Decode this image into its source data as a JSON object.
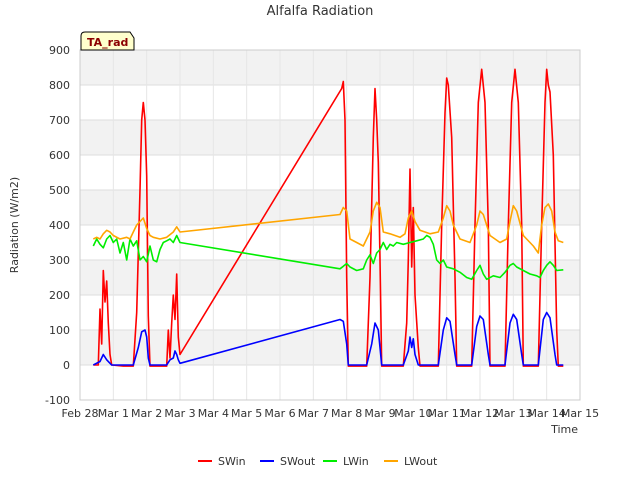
{
  "chart_data": {
    "type": "line",
    "title": "Alfalfa Radiation",
    "xlabel": "Time",
    "ylabel": "Radiation (W/m2)",
    "tag": "TA_rad",
    "ylim": [
      -100,
      900
    ],
    "yticks": [
      -100,
      0,
      100,
      200,
      300,
      400,
      500,
      600,
      700,
      800,
      900
    ],
    "xlim": [
      0,
      15
    ],
    "xticks": [
      0,
      1,
      2,
      3,
      4,
      5,
      6,
      7,
      8,
      9,
      10,
      11,
      12,
      13,
      14,
      15
    ],
    "xtick_labels": [
      "Feb 28",
      "Mar 1",
      "Mar 2",
      "Mar 3",
      "Mar 4",
      "Mar 5",
      "Mar 6",
      "Mar 7",
      "Mar 8",
      "Mar 9",
      "Mar 10",
      "Mar 11",
      "Mar 12",
      "Mar 13",
      "Mar 14",
      "Mar 15"
    ],
    "x_units": "days since Feb 28",
    "grid": true,
    "legend_position": "bottom",
    "series": [
      {
        "name": "SWin",
        "color": "#ff0000",
        "points": [
          [
            0.4,
            0
          ],
          [
            0.55,
            0
          ],
          [
            0.6,
            160
          ],
          [
            0.65,
            60
          ],
          [
            0.7,
            270
          ],
          [
            0.75,
            180
          ],
          [
            0.8,
            240
          ],
          [
            0.85,
            120
          ],
          [
            0.9,
            30
          ],
          [
            0.95,
            0
          ],
          [
            1.3,
            -3
          ],
          [
            1.6,
            -3
          ],
          [
            1.7,
            150
          ],
          [
            1.8,
            500
          ],
          [
            1.85,
            700
          ],
          [
            1.9,
            750
          ],
          [
            1.95,
            700
          ],
          [
            2.0,
            540
          ],
          [
            2.05,
            140
          ],
          [
            2.1,
            -3
          ],
          [
            2.6,
            -3
          ],
          [
            2.65,
            100
          ],
          [
            2.7,
            20
          ],
          [
            2.75,
            120
          ],
          [
            2.8,
            200
          ],
          [
            2.85,
            130
          ],
          [
            2.9,
            260
          ],
          [
            2.95,
            80
          ],
          [
            3.0,
            30
          ],
          [
            7.85,
            790
          ],
          [
            7.9,
            810
          ],
          [
            7.95,
            700
          ],
          [
            8.0,
            250
          ],
          [
            8.05,
            -3
          ],
          [
            8.6,
            -3
          ],
          [
            8.7,
            250
          ],
          [
            8.8,
            650
          ],
          [
            8.85,
            790
          ],
          [
            8.9,
            700
          ],
          [
            8.95,
            580
          ],
          [
            9.0,
            300
          ],
          [
            9.05,
            -3
          ],
          [
            9.7,
            -3
          ],
          [
            9.8,
            120
          ],
          [
            9.85,
            300
          ],
          [
            9.9,
            560
          ],
          [
            9.95,
            280
          ],
          [
            10.0,
            450
          ],
          [
            10.05,
            200
          ],
          [
            10.15,
            50
          ],
          [
            10.2,
            -3
          ],
          [
            10.75,
            -3
          ],
          [
            10.85,
            400
          ],
          [
            10.95,
            720
          ],
          [
            11.0,
            820
          ],
          [
            11.05,
            800
          ],
          [
            11.15,
            650
          ],
          [
            11.25,
            250
          ],
          [
            11.3,
            -3
          ],
          [
            11.75,
            -3
          ],
          [
            11.85,
            400
          ],
          [
            11.95,
            750
          ],
          [
            12.05,
            845
          ],
          [
            12.15,
            750
          ],
          [
            12.25,
            400
          ],
          [
            12.3,
            -3
          ],
          [
            12.75,
            -3
          ],
          [
            12.85,
            400
          ],
          [
            12.95,
            750
          ],
          [
            13.05,
            845
          ],
          [
            13.15,
            750
          ],
          [
            13.25,
            400
          ],
          [
            13.3,
            -3
          ],
          [
            13.75,
            -3
          ],
          [
            13.85,
            400
          ],
          [
            13.95,
            750
          ],
          [
            14.0,
            845
          ],
          [
            14.05,
            800
          ],
          [
            14.1,
            780
          ],
          [
            14.2,
            600
          ],
          [
            14.3,
            100
          ],
          [
            14.35,
            -3
          ],
          [
            14.5,
            -3
          ]
        ]
      },
      {
        "name": "SWout",
        "color": "#0000ff",
        "points": [
          [
            0.4,
            0
          ],
          [
            0.6,
            10
          ],
          [
            0.7,
            30
          ],
          [
            0.8,
            15
          ],
          [
            0.9,
            5
          ],
          [
            0.95,
            0
          ],
          [
            1.6,
            0
          ],
          [
            1.75,
            50
          ],
          [
            1.85,
            95
          ],
          [
            1.95,
            100
          ],
          [
            2.0,
            80
          ],
          [
            2.05,
            20
          ],
          [
            2.1,
            0
          ],
          [
            2.6,
            0
          ],
          [
            2.7,
            15
          ],
          [
            2.8,
            20
          ],
          [
            2.85,
            40
          ],
          [
            2.9,
            30
          ],
          [
            2.95,
            15
          ],
          [
            3.0,
            5
          ],
          [
            7.8,
            130
          ],
          [
            7.9,
            125
          ],
          [
            8.0,
            60
          ],
          [
            8.05,
            0
          ],
          [
            8.6,
            0
          ],
          [
            8.75,
            60
          ],
          [
            8.85,
            120
          ],
          [
            8.95,
            100
          ],
          [
            9.05,
            0
          ],
          [
            9.7,
            0
          ],
          [
            9.85,
            40
          ],
          [
            9.9,
            80
          ],
          [
            9.95,
            50
          ],
          [
            10.0,
            75
          ],
          [
            10.05,
            30
          ],
          [
            10.15,
            0
          ],
          [
            10.75,
            0
          ],
          [
            10.9,
            100
          ],
          [
            11.0,
            135
          ],
          [
            11.1,
            125
          ],
          [
            11.25,
            30
          ],
          [
            11.3,
            0
          ],
          [
            11.75,
            0
          ],
          [
            11.9,
            110
          ],
          [
            12.0,
            140
          ],
          [
            12.1,
            130
          ],
          [
            12.25,
            30
          ],
          [
            12.3,
            0
          ],
          [
            12.75,
            0
          ],
          [
            12.9,
            120
          ],
          [
            13.0,
            145
          ],
          [
            13.1,
            130
          ],
          [
            13.25,
            30
          ],
          [
            13.3,
            0
          ],
          [
            13.75,
            0
          ],
          [
            13.9,
            130
          ],
          [
            14.0,
            150
          ],
          [
            14.1,
            135
          ],
          [
            14.25,
            30
          ],
          [
            14.3,
            0
          ],
          [
            14.5,
            0
          ]
        ]
      },
      {
        "name": "LWin",
        "color": "#00ee00",
        "points": [
          [
            0.4,
            340
          ],
          [
            0.5,
            360
          ],
          [
            0.6,
            345
          ],
          [
            0.7,
            335
          ],
          [
            0.8,
            360
          ],
          [
            0.9,
            370
          ],
          [
            1.0,
            350
          ],
          [
            1.1,
            360
          ],
          [
            1.2,
            320
          ],
          [
            1.3,
            350
          ],
          [
            1.4,
            300
          ],
          [
            1.5,
            360
          ],
          [
            1.6,
            340
          ],
          [
            1.7,
            355
          ],
          [
            1.8,
            300
          ],
          [
            1.9,
            310
          ],
          [
            2.0,
            295
          ],
          [
            2.1,
            340
          ],
          [
            2.2,
            300
          ],
          [
            2.3,
            295
          ],
          [
            2.4,
            330
          ],
          [
            2.5,
            350
          ],
          [
            2.6,
            355
          ],
          [
            2.7,
            360
          ],
          [
            2.8,
            350
          ],
          [
            2.9,
            370
          ],
          [
            3.0,
            350
          ],
          [
            7.8,
            275
          ],
          [
            7.9,
            282
          ],
          [
            8.0,
            290
          ],
          [
            8.1,
            280
          ],
          [
            8.3,
            270
          ],
          [
            8.5,
            275
          ],
          [
            8.6,
            300
          ],
          [
            8.7,
            315
          ],
          [
            8.8,
            290
          ],
          [
            8.9,
            320
          ],
          [
            9.0,
            330
          ],
          [
            9.1,
            350
          ],
          [
            9.2,
            330
          ],
          [
            9.3,
            345
          ],
          [
            9.4,
            340
          ],
          [
            9.5,
            350
          ],
          [
            9.7,
            345
          ],
          [
            9.9,
            350
          ],
          [
            10.1,
            355
          ],
          [
            10.3,
            360
          ],
          [
            10.4,
            370
          ],
          [
            10.5,
            365
          ],
          [
            10.6,
            345
          ],
          [
            10.7,
            300
          ],
          [
            10.8,
            290
          ],
          [
            10.9,
            300
          ],
          [
            11.0,
            280
          ],
          [
            11.2,
            275
          ],
          [
            11.4,
            265
          ],
          [
            11.6,
            250
          ],
          [
            11.75,
            245
          ],
          [
            11.9,
            270
          ],
          [
            12.0,
            285
          ],
          [
            12.1,
            260
          ],
          [
            12.2,
            245
          ],
          [
            12.4,
            255
          ],
          [
            12.6,
            250
          ],
          [
            12.75,
            265
          ],
          [
            12.9,
            285
          ],
          [
            13.0,
            290
          ],
          [
            13.1,
            280
          ],
          [
            13.3,
            270
          ],
          [
            13.5,
            260
          ],
          [
            13.7,
            255
          ],
          [
            13.8,
            250
          ],
          [
            13.9,
            270
          ],
          [
            14.0,
            285
          ],
          [
            14.1,
            295
          ],
          [
            14.2,
            285
          ],
          [
            14.3,
            270
          ],
          [
            14.5,
            272
          ]
        ]
      },
      {
        "name": "LWout",
        "color": "#ffa500",
        "points": [
          [
            0.4,
            360
          ],
          [
            0.5,
            365
          ],
          [
            0.6,
            360
          ],
          [
            0.7,
            375
          ],
          [
            0.8,
            385
          ],
          [
            0.9,
            380
          ],
          [
            1.0,
            370
          ],
          [
            1.2,
            360
          ],
          [
            1.4,
            365
          ],
          [
            1.5,
            360
          ],
          [
            1.6,
            380
          ],
          [
            1.7,
            400
          ],
          [
            1.8,
            410
          ],
          [
            1.9,
            420
          ],
          [
            2.0,
            390
          ],
          [
            2.1,
            370
          ],
          [
            2.2,
            365
          ],
          [
            2.4,
            360
          ],
          [
            2.6,
            365
          ],
          [
            2.8,
            380
          ],
          [
            2.9,
            395
          ],
          [
            3.0,
            380
          ],
          [
            7.8,
            430
          ],
          [
            7.9,
            450
          ],
          [
            8.0,
            440
          ],
          [
            8.1,
            360
          ],
          [
            8.3,
            350
          ],
          [
            8.5,
            340
          ],
          [
            8.7,
            380
          ],
          [
            8.8,
            440
          ],
          [
            8.9,
            465
          ],
          [
            9.0,
            450
          ],
          [
            9.1,
            380
          ],
          [
            9.3,
            375
          ],
          [
            9.6,
            365
          ],
          [
            9.75,
            375
          ],
          [
            9.85,
            420
          ],
          [
            9.95,
            440
          ],
          [
            10.05,
            410
          ],
          [
            10.2,
            385
          ],
          [
            10.5,
            375
          ],
          [
            10.75,
            380
          ],
          [
            10.9,
            420
          ],
          [
            11.0,
            455
          ],
          [
            11.1,
            440
          ],
          [
            11.2,
            400
          ],
          [
            11.4,
            360
          ],
          [
            11.7,
            350
          ],
          [
            11.9,
            400
          ],
          [
            12.0,
            440
          ],
          [
            12.1,
            430
          ],
          [
            12.3,
            370
          ],
          [
            12.6,
            350
          ],
          [
            12.8,
            360
          ],
          [
            12.9,
            410
          ],
          [
            13.0,
            455
          ],
          [
            13.1,
            440
          ],
          [
            13.3,
            370
          ],
          [
            13.6,
            340
          ],
          [
            13.75,
            320
          ],
          [
            13.85,
            400
          ],
          [
            13.95,
            450
          ],
          [
            14.05,
            460
          ],
          [
            14.15,
            440
          ],
          [
            14.25,
            380
          ],
          [
            14.35,
            355
          ],
          [
            14.5,
            350
          ]
        ]
      }
    ]
  }
}
